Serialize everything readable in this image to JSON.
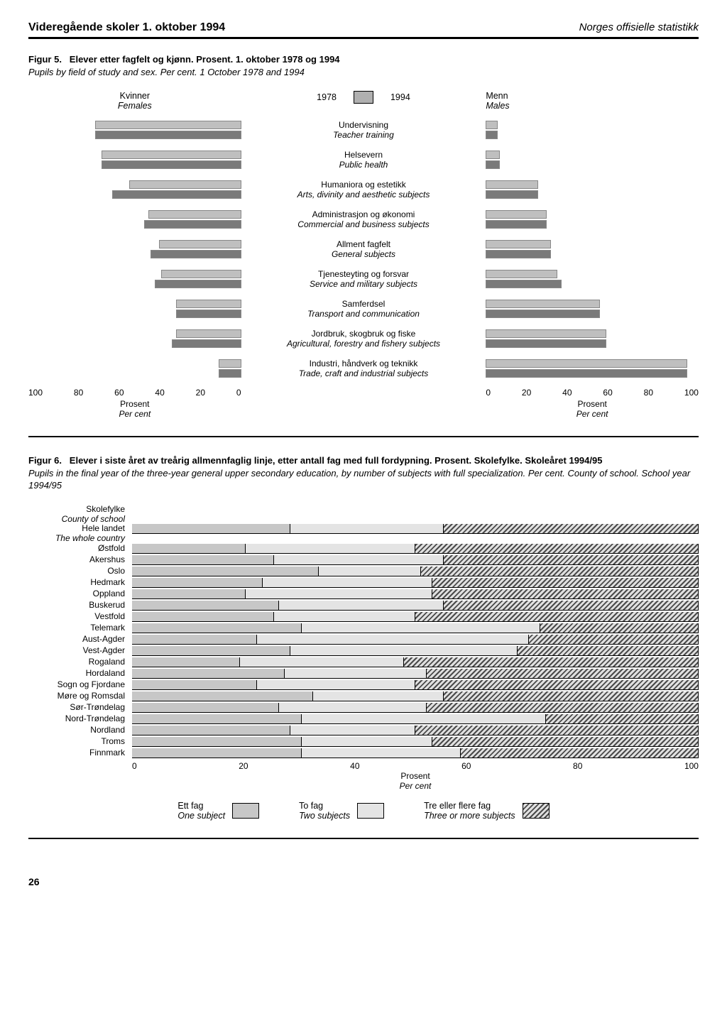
{
  "header": {
    "left": "Videregående skoler 1. oktober 1994",
    "right": "Norges offisielle statistikk"
  },
  "fig5": {
    "caption_label": "Figur 5.",
    "caption_bold": "Elever etter fagfelt og kjønn. Prosent. 1. oktober 1978 og 1994",
    "caption_italic": "Pupils by field of study and sex. Per cent. 1 October 1978 and 1994",
    "left_head_no": "Kvinner",
    "left_head_en": "Females",
    "right_head_no": "Menn",
    "right_head_en": "Males",
    "year1": "1978",
    "year2": "1994",
    "axis_ticks_left": [
      "100",
      "80",
      "60",
      "40",
      "20",
      "0"
    ],
    "axis_ticks_right": [
      "0",
      "20",
      "40",
      "60",
      "80",
      "100"
    ],
    "axis_label_no": "Prosent",
    "axis_label_en": "Per cent",
    "bar_color_1978": "#bfbfbf",
    "bar_color_1994": "#b0b0b0",
    "categories": [
      {
        "no": "Undervisning",
        "en": "Teacher training",
        "female_1978": 68,
        "female_1994": 68,
        "male_1978": 5,
        "male_1994": 5
      },
      {
        "no": "Helsevern",
        "en": "Public health",
        "female_1978": 65,
        "female_1994": 65,
        "male_1978": 6,
        "male_1994": 6
      },
      {
        "no": "Humaniora og estetikk",
        "en": "Arts, divinity and aesthetic subjects",
        "female_1978": 52,
        "female_1994": 60,
        "male_1978": 24,
        "male_1994": 24
      },
      {
        "no": "Administrasjon og økonomi",
        "en": "Commercial and business subjects",
        "female_1978": 43,
        "female_1994": 45,
        "male_1978": 28,
        "male_1994": 28
      },
      {
        "no": "Allment fagfelt",
        "en": "General subjects",
        "female_1978": 38,
        "female_1994": 42,
        "male_1978": 30,
        "male_1994": 30
      },
      {
        "no": "Tjenesteyting og forsvar",
        "en": "Service and military subjects",
        "female_1978": 37,
        "female_1994": 40,
        "male_1978": 33,
        "male_1994": 35
      },
      {
        "no": "Samferdsel",
        "en": "Transport and communication",
        "female_1978": 30,
        "female_1994": 30,
        "male_1978": 53,
        "male_1994": 53
      },
      {
        "no": "Jordbruk, skogbruk og fiske",
        "en": "Agricultural, forestry and fishery subjects",
        "female_1978": 30,
        "female_1994": 32,
        "male_1978": 56,
        "male_1994": 56
      },
      {
        "no": "Industri, håndverk og teknikk",
        "en": "Trade, craft and industrial subjects",
        "female_1978": 10,
        "female_1994": 10,
        "male_1978": 94,
        "male_1994": 94
      }
    ]
  },
  "fig6": {
    "caption_label": "Figur 6.",
    "caption_bold": "Elever i siste året av treårig allmennfaglig linje, etter antall fag med full fordypning. Prosent. Skolefylke. Skoleåret 1994/95",
    "caption_italic": "Pupils in the final year of the three-year general upper secondary education, by number of subjects with full specialization. Per cent. County of school. School year 1994/95",
    "county_head_no": "Skolefylke",
    "county_head_en": "County of school",
    "axis_ticks": [
      "0",
      "20",
      "40",
      "60",
      "80",
      "100"
    ],
    "axis_label_no": "Prosent",
    "axis_label_en": "Per cent",
    "legend": [
      {
        "no": "Ett fag",
        "en": "One subject",
        "class": "seg-one"
      },
      {
        "no": "To fag",
        "en": "Two subjects",
        "class": "seg-two"
      },
      {
        "no": "Tre eller flere fag",
        "en": "Three or more subjects",
        "class": "seg-three"
      }
    ],
    "counties": [
      {
        "label": "Hele landet",
        "en": "The whole country",
        "one": 28,
        "two": 27,
        "three": 45
      },
      {
        "label": "Østfold",
        "one": 20,
        "two": 30,
        "three": 50
      },
      {
        "label": "Akershus",
        "one": 25,
        "two": 30,
        "three": 45
      },
      {
        "label": "Oslo",
        "one": 33,
        "two": 18,
        "three": 49
      },
      {
        "label": "Hedmark",
        "one": 23,
        "two": 30,
        "three": 47
      },
      {
        "label": "Oppland",
        "one": 20,
        "two": 33,
        "three": 47
      },
      {
        "label": "Buskerud",
        "one": 26,
        "two": 29,
        "three": 45
      },
      {
        "label": "Vestfold",
        "one": 25,
        "two": 25,
        "three": 50
      },
      {
        "label": "Telemark",
        "one": 30,
        "two": 42,
        "three": 28
      },
      {
        "label": "Aust-Agder",
        "one": 22,
        "two": 48,
        "three": 30
      },
      {
        "label": "Vest-Agder",
        "one": 28,
        "two": 40,
        "three": 32
      },
      {
        "label": "Rogaland",
        "one": 19,
        "two": 29,
        "three": 52
      },
      {
        "label": "Hordaland",
        "one": 27,
        "two": 25,
        "three": 48
      },
      {
        "label": "Sogn og Fjordane",
        "one": 22,
        "two": 28,
        "three": 50
      },
      {
        "label": "Møre og Romsdal",
        "one": 32,
        "two": 23,
        "three": 45
      },
      {
        "label": "Sør-Trøndelag",
        "one": 26,
        "two": 26,
        "three": 48
      },
      {
        "label": "Nord-Trøndelag",
        "one": 30,
        "two": 43,
        "three": 27
      },
      {
        "label": "Nordland",
        "one": 28,
        "two": 22,
        "three": 50
      },
      {
        "label": "Troms",
        "one": 30,
        "two": 23,
        "three": 47
      },
      {
        "label": "Finnmark",
        "one": 30,
        "two": 28,
        "three": 42
      }
    ]
  },
  "page_number": "26"
}
